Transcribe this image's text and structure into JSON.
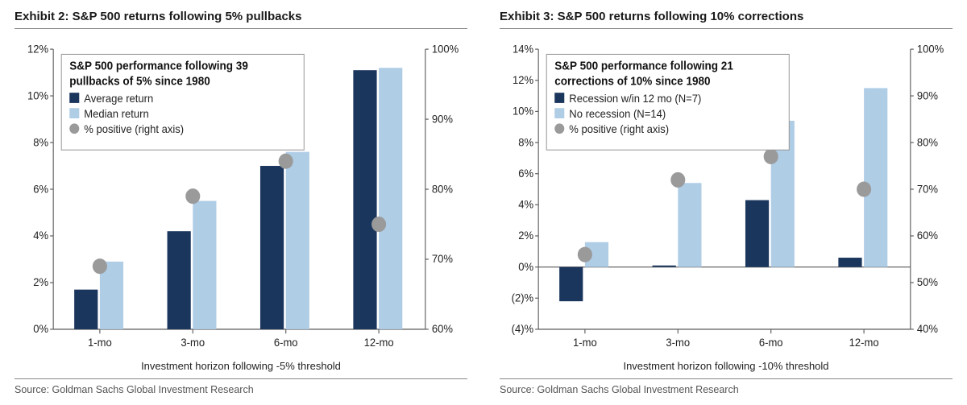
{
  "exhibit2": {
    "title": "Exhibit 2: S&P 500 returns following 5% pullbacks",
    "xlabel": "Investment horizon following -5% threshold",
    "source": "Source: Goldman Sachs Global Investment Research",
    "type": "grouped_bar_with_markers",
    "categories": [
      "1-mo",
      "3-mo",
      "6-mo",
      "12-mo"
    ],
    "series": [
      {
        "name": "Average return",
        "color": "#1b365d",
        "values": [
          1.7,
          4.2,
          7.0,
          11.1
        ]
      },
      {
        "name": "Median return",
        "color": "#b0cde6",
        "values": [
          2.9,
          5.5,
          7.6,
          11.2
        ]
      }
    ],
    "markers": {
      "name": "% positive (right axis)",
      "color": "#9a9a9a",
      "values": [
        69,
        79,
        84,
        75
      ]
    },
    "legend_title": "S&P 500 performance following 39 pullbacks of 5% since 1980",
    "y_left": {
      "min": 0,
      "max": 12,
      "step": 2,
      "fmt": "pct"
    },
    "y_right": {
      "min": 60,
      "max": 100,
      "step": 10,
      "fmt": "pct"
    },
    "background_color": "#ffffff",
    "bar_group_width": 0.55,
    "marker_radius": 9
  },
  "exhibit3": {
    "title": "Exhibit 3: S&P 500 returns following 10% corrections",
    "xlabel": "Investment horizon following -10% threshold",
    "source": "Source: Goldman Sachs Global Investment Research",
    "type": "grouped_bar_with_markers",
    "categories": [
      "1-mo",
      "3-mo",
      "6-mo",
      "12-mo"
    ],
    "series": [
      {
        "name": "Recession w/in 12 mo (N=7)",
        "color": "#1b365d",
        "values": [
          -2.2,
          0.1,
          4.3,
          0.6
        ]
      },
      {
        "name": "No recession (N=14)",
        "color": "#b0cde6",
        "values": [
          1.6,
          5.4,
          9.4,
          11.5
        ]
      }
    ],
    "markers": {
      "name": "% positive (right axis)",
      "color": "#9a9a9a",
      "values": [
        56,
        72,
        77,
        70
      ]
    },
    "legend_title": "S&P 500 performance following 21 corrections of 10% since 1980",
    "y_left": {
      "min": -4,
      "max": 14,
      "step": 2,
      "fmt": "paren_pct"
    },
    "y_right": {
      "min": 40,
      "max": 100,
      "step": 10,
      "fmt": "pct"
    },
    "background_color": "#ffffff",
    "bar_group_width": 0.55,
    "marker_radius": 9
  }
}
